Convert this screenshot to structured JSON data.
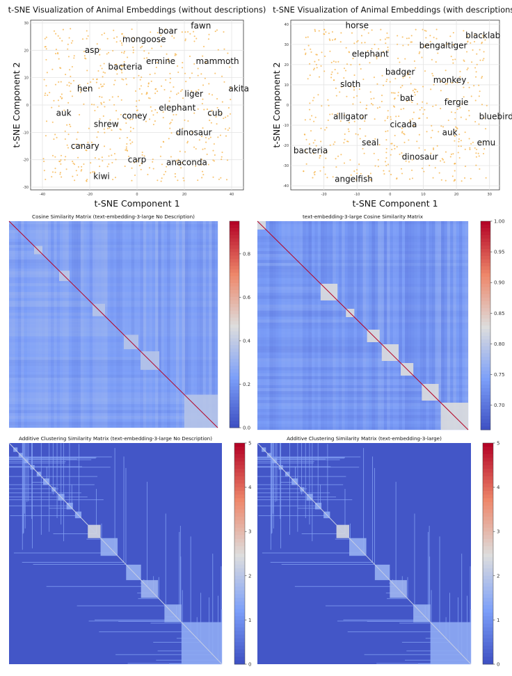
{
  "chart_data": [
    {
      "type": "scatter",
      "title": "t-SNE Visualization of Animal Embeddings (without descriptions)",
      "xlabel": "t-SNE Component 1",
      "ylabel": "t-SNE Component 2",
      "xlim": [
        -45,
        45
      ],
      "ylim": [
        -31,
        31
      ],
      "xticks": [
        -40,
        -20,
        0,
        20,
        40
      ],
      "yticks": [
        -30,
        -20,
        -10,
        0,
        10,
        20,
        30
      ],
      "grid": true,
      "point_color": "#f5b041",
      "point_count": 520,
      "annotations": [
        {
          "label": "fawn",
          "x": 27,
          "y": 28
        },
        {
          "label": "boar",
          "x": 13,
          "y": 26
        },
        {
          "label": "mongoose",
          "x": 3,
          "y": 23
        },
        {
          "label": "asp",
          "x": -19,
          "y": 19
        },
        {
          "label": "mammoth",
          "x": 34,
          "y": 15
        },
        {
          "label": "ermine",
          "x": 10,
          "y": 15
        },
        {
          "label": "bacteria",
          "x": -5,
          "y": 13
        },
        {
          "label": "akita",
          "x": 43,
          "y": 5
        },
        {
          "label": "hen",
          "x": -22,
          "y": 5
        },
        {
          "label": "liger",
          "x": 24,
          "y": 3
        },
        {
          "label": "elephant",
          "x": 17,
          "y": -2
        },
        {
          "label": "cub",
          "x": 33,
          "y": -4
        },
        {
          "label": "auk",
          "x": -31,
          "y": -4
        },
        {
          "label": "coney",
          "x": -1,
          "y": -5
        },
        {
          "label": "shrew",
          "x": -13,
          "y": -8
        },
        {
          "label": "dinosaur",
          "x": 24,
          "y": -11
        },
        {
          "label": "canary",
          "x": -22,
          "y": -16
        },
        {
          "label": "carp",
          "x": 0,
          "y": -21
        },
        {
          "label": "anaconda",
          "x": 21,
          "y": -22
        },
        {
          "label": "kiwi",
          "x": -15,
          "y": -27
        }
      ]
    },
    {
      "type": "scatter",
      "title": "t-SNE Visualization of Animal Embeddings (with descriptions)",
      "xlabel": "t-SNE Component 1",
      "ylabel": "t-SNE Component 2",
      "xlim": [
        -30,
        33
      ],
      "ylim": [
        -42,
        42
      ],
      "xticks": [
        -20,
        -10,
        0,
        10,
        20,
        30
      ],
      "yticks": [
        -40,
        -30,
        -20,
        -10,
        0,
        10,
        20,
        30,
        40
      ],
      "grid": true,
      "point_color": "#f5b041",
      "point_count": 520,
      "annotations": [
        {
          "label": "horse",
          "x": -10,
          "y": 38
        },
        {
          "label": "blacklab",
          "x": 28,
          "y": 33
        },
        {
          "label": "bengaltiger",
          "x": 16,
          "y": 28
        },
        {
          "label": "elephant",
          "x": -6,
          "y": 24
        },
        {
          "label": "badger",
          "x": 3,
          "y": 15
        },
        {
          "label": "monkey",
          "x": 18,
          "y": 11
        },
        {
          "label": "sloth",
          "x": -12,
          "y": 9
        },
        {
          "label": "bat",
          "x": 5,
          "y": 2
        },
        {
          "label": "fergie",
          "x": 20,
          "y": 0
        },
        {
          "label": "alligator",
          "x": -12,
          "y": -7
        },
        {
          "label": "bluebird",
          "x": 32,
          "y": -7
        },
        {
          "label": "cicada",
          "x": 4,
          "y": -11
        },
        {
          "label": "auk",
          "x": 18,
          "y": -15
        },
        {
          "label": "emu",
          "x": 29,
          "y": -20
        },
        {
          "label": "seal",
          "x": -6,
          "y": -20
        },
        {
          "label": "bacteria",
          "x": -24,
          "y": -24
        },
        {
          "label": "dinosaur",
          "x": 9,
          "y": -27
        },
        {
          "label": "angelfish",
          "x": -11,
          "y": -38
        }
      ]
    },
    {
      "type": "heatmap",
      "title": "Cosine Similarity Matrix (text-embedding-3-large No Description)",
      "colormap": "coolwarm",
      "colorbar_range": [
        0.0,
        0.95
      ],
      "colorbar_ticks": [
        0.0,
        0.2,
        0.4,
        0.6,
        0.8
      ],
      "colorbar_tick_labels": [
        "0.0",
        "0.2",
        "0.4",
        "0.6",
        "0.8"
      ],
      "base_value": 0.25,
      "diagonal_value": 0.95,
      "blocks": [
        {
          "start": 0.12,
          "end": 0.16,
          "value": 0.4
        },
        {
          "start": 0.24,
          "end": 0.29,
          "value": 0.4
        },
        {
          "start": 0.4,
          "end": 0.46,
          "value": 0.38
        },
        {
          "start": 0.55,
          "end": 0.62,
          "value": 0.38
        },
        {
          "start": 0.63,
          "end": 0.72,
          "value": 0.38
        },
        {
          "start": 0.84,
          "end": 1.0,
          "value": 0.38
        }
      ]
    },
    {
      "type": "heatmap",
      "title": "text-embedding-3-large Cosine Similarity Matrix",
      "colormap": "coolwarm",
      "colorbar_range": [
        0.66,
        1.0
      ],
      "colorbar_ticks": [
        0.7,
        0.75,
        0.8,
        0.85,
        0.9,
        0.95,
        1.0
      ],
      "colorbar_tick_labels": [
        "0.70",
        "0.75",
        "0.80",
        "0.85",
        "0.90",
        "0.95",
        "1.00"
      ],
      "base_value": 0.74,
      "diagonal_value": 1.0,
      "blocks": [
        {
          "start": 0.0,
          "end": 0.04,
          "value": 0.83
        },
        {
          "start": 0.3,
          "end": 0.38,
          "value": 0.83
        },
        {
          "start": 0.42,
          "end": 0.46,
          "value": 0.83
        },
        {
          "start": 0.52,
          "end": 0.58,
          "value": 0.83
        },
        {
          "start": 0.59,
          "end": 0.67,
          "value": 0.83
        },
        {
          "start": 0.68,
          "end": 0.74,
          "value": 0.83
        },
        {
          "start": 0.78,
          "end": 0.86,
          "value": 0.83
        },
        {
          "start": 0.87,
          "end": 1.0,
          "value": 0.83
        }
      ]
    },
    {
      "type": "heatmap",
      "title": "Additive Clustering Similarity Matrix (text-embedding-3-large No Description)",
      "colormap": "coolwarm",
      "colorbar_range": [
        0,
        5
      ],
      "colorbar_ticks": [
        0,
        1,
        2,
        3,
        4,
        5
      ],
      "colorbar_tick_labels": [
        "0",
        "1",
        "2",
        "3",
        "4",
        "5"
      ],
      "base_value": 0.15,
      "diagonal_value": 2.2,
      "blocks": [
        {
          "start": 0.02,
          "end": 0.04,
          "value": 1.5
        },
        {
          "start": 0.045,
          "end": 0.065,
          "value": 1.5
        },
        {
          "start": 0.07,
          "end": 0.09,
          "value": 1.5
        },
        {
          "start": 0.1,
          "end": 0.12,
          "value": 1.5
        },
        {
          "start": 0.13,
          "end": 0.15,
          "value": 1.5
        },
        {
          "start": 0.16,
          "end": 0.19,
          "value": 1.5
        },
        {
          "start": 0.2,
          "end": 0.22,
          "value": 1.5
        },
        {
          "start": 0.23,
          "end": 0.26,
          "value": 1.5
        },
        {
          "start": 0.27,
          "end": 0.3,
          "value": 1.5
        },
        {
          "start": 0.31,
          "end": 0.34,
          "value": 1.5
        },
        {
          "start": 0.37,
          "end": 0.43,
          "value": 2.4
        },
        {
          "start": 0.43,
          "end": 0.51,
          "value": 1.6
        },
        {
          "start": 0.55,
          "end": 0.62,
          "value": 1.6
        },
        {
          "start": 0.62,
          "end": 0.7,
          "value": 1.7
        },
        {
          "start": 0.73,
          "end": 0.81,
          "value": 1.6
        },
        {
          "start": 0.81,
          "end": 1.0,
          "value": 1.5
        }
      ]
    },
    {
      "type": "heatmap",
      "title": "Additive Clustering Similarity Matrix (text-embedding-3-large)",
      "colormap": "coolwarm",
      "colorbar_range": [
        0,
        5
      ],
      "colorbar_ticks": [
        0,
        1,
        2,
        3,
        4,
        5
      ],
      "colorbar_tick_labels": [
        "0",
        "1",
        "2",
        "3",
        "4",
        "5"
      ],
      "base_value": 0.15,
      "diagonal_value": 2.2,
      "blocks": [
        {
          "start": 0.02,
          "end": 0.04,
          "value": 1.5
        },
        {
          "start": 0.045,
          "end": 0.065,
          "value": 1.5
        },
        {
          "start": 0.07,
          "end": 0.09,
          "value": 1.5
        },
        {
          "start": 0.1,
          "end": 0.12,
          "value": 1.5
        },
        {
          "start": 0.13,
          "end": 0.15,
          "value": 1.5
        },
        {
          "start": 0.16,
          "end": 0.19,
          "value": 1.5
        },
        {
          "start": 0.2,
          "end": 0.22,
          "value": 1.5
        },
        {
          "start": 0.23,
          "end": 0.26,
          "value": 1.5
        },
        {
          "start": 0.27,
          "end": 0.3,
          "value": 1.5
        },
        {
          "start": 0.31,
          "end": 0.34,
          "value": 1.5
        },
        {
          "start": 0.37,
          "end": 0.43,
          "value": 2.4
        },
        {
          "start": 0.43,
          "end": 0.51,
          "value": 1.6
        },
        {
          "start": 0.55,
          "end": 0.62,
          "value": 1.6
        },
        {
          "start": 0.62,
          "end": 0.7,
          "value": 1.7
        },
        {
          "start": 0.73,
          "end": 0.81,
          "value": 1.6
        },
        {
          "start": 0.81,
          "end": 1.0,
          "value": 1.5
        }
      ]
    }
  ]
}
